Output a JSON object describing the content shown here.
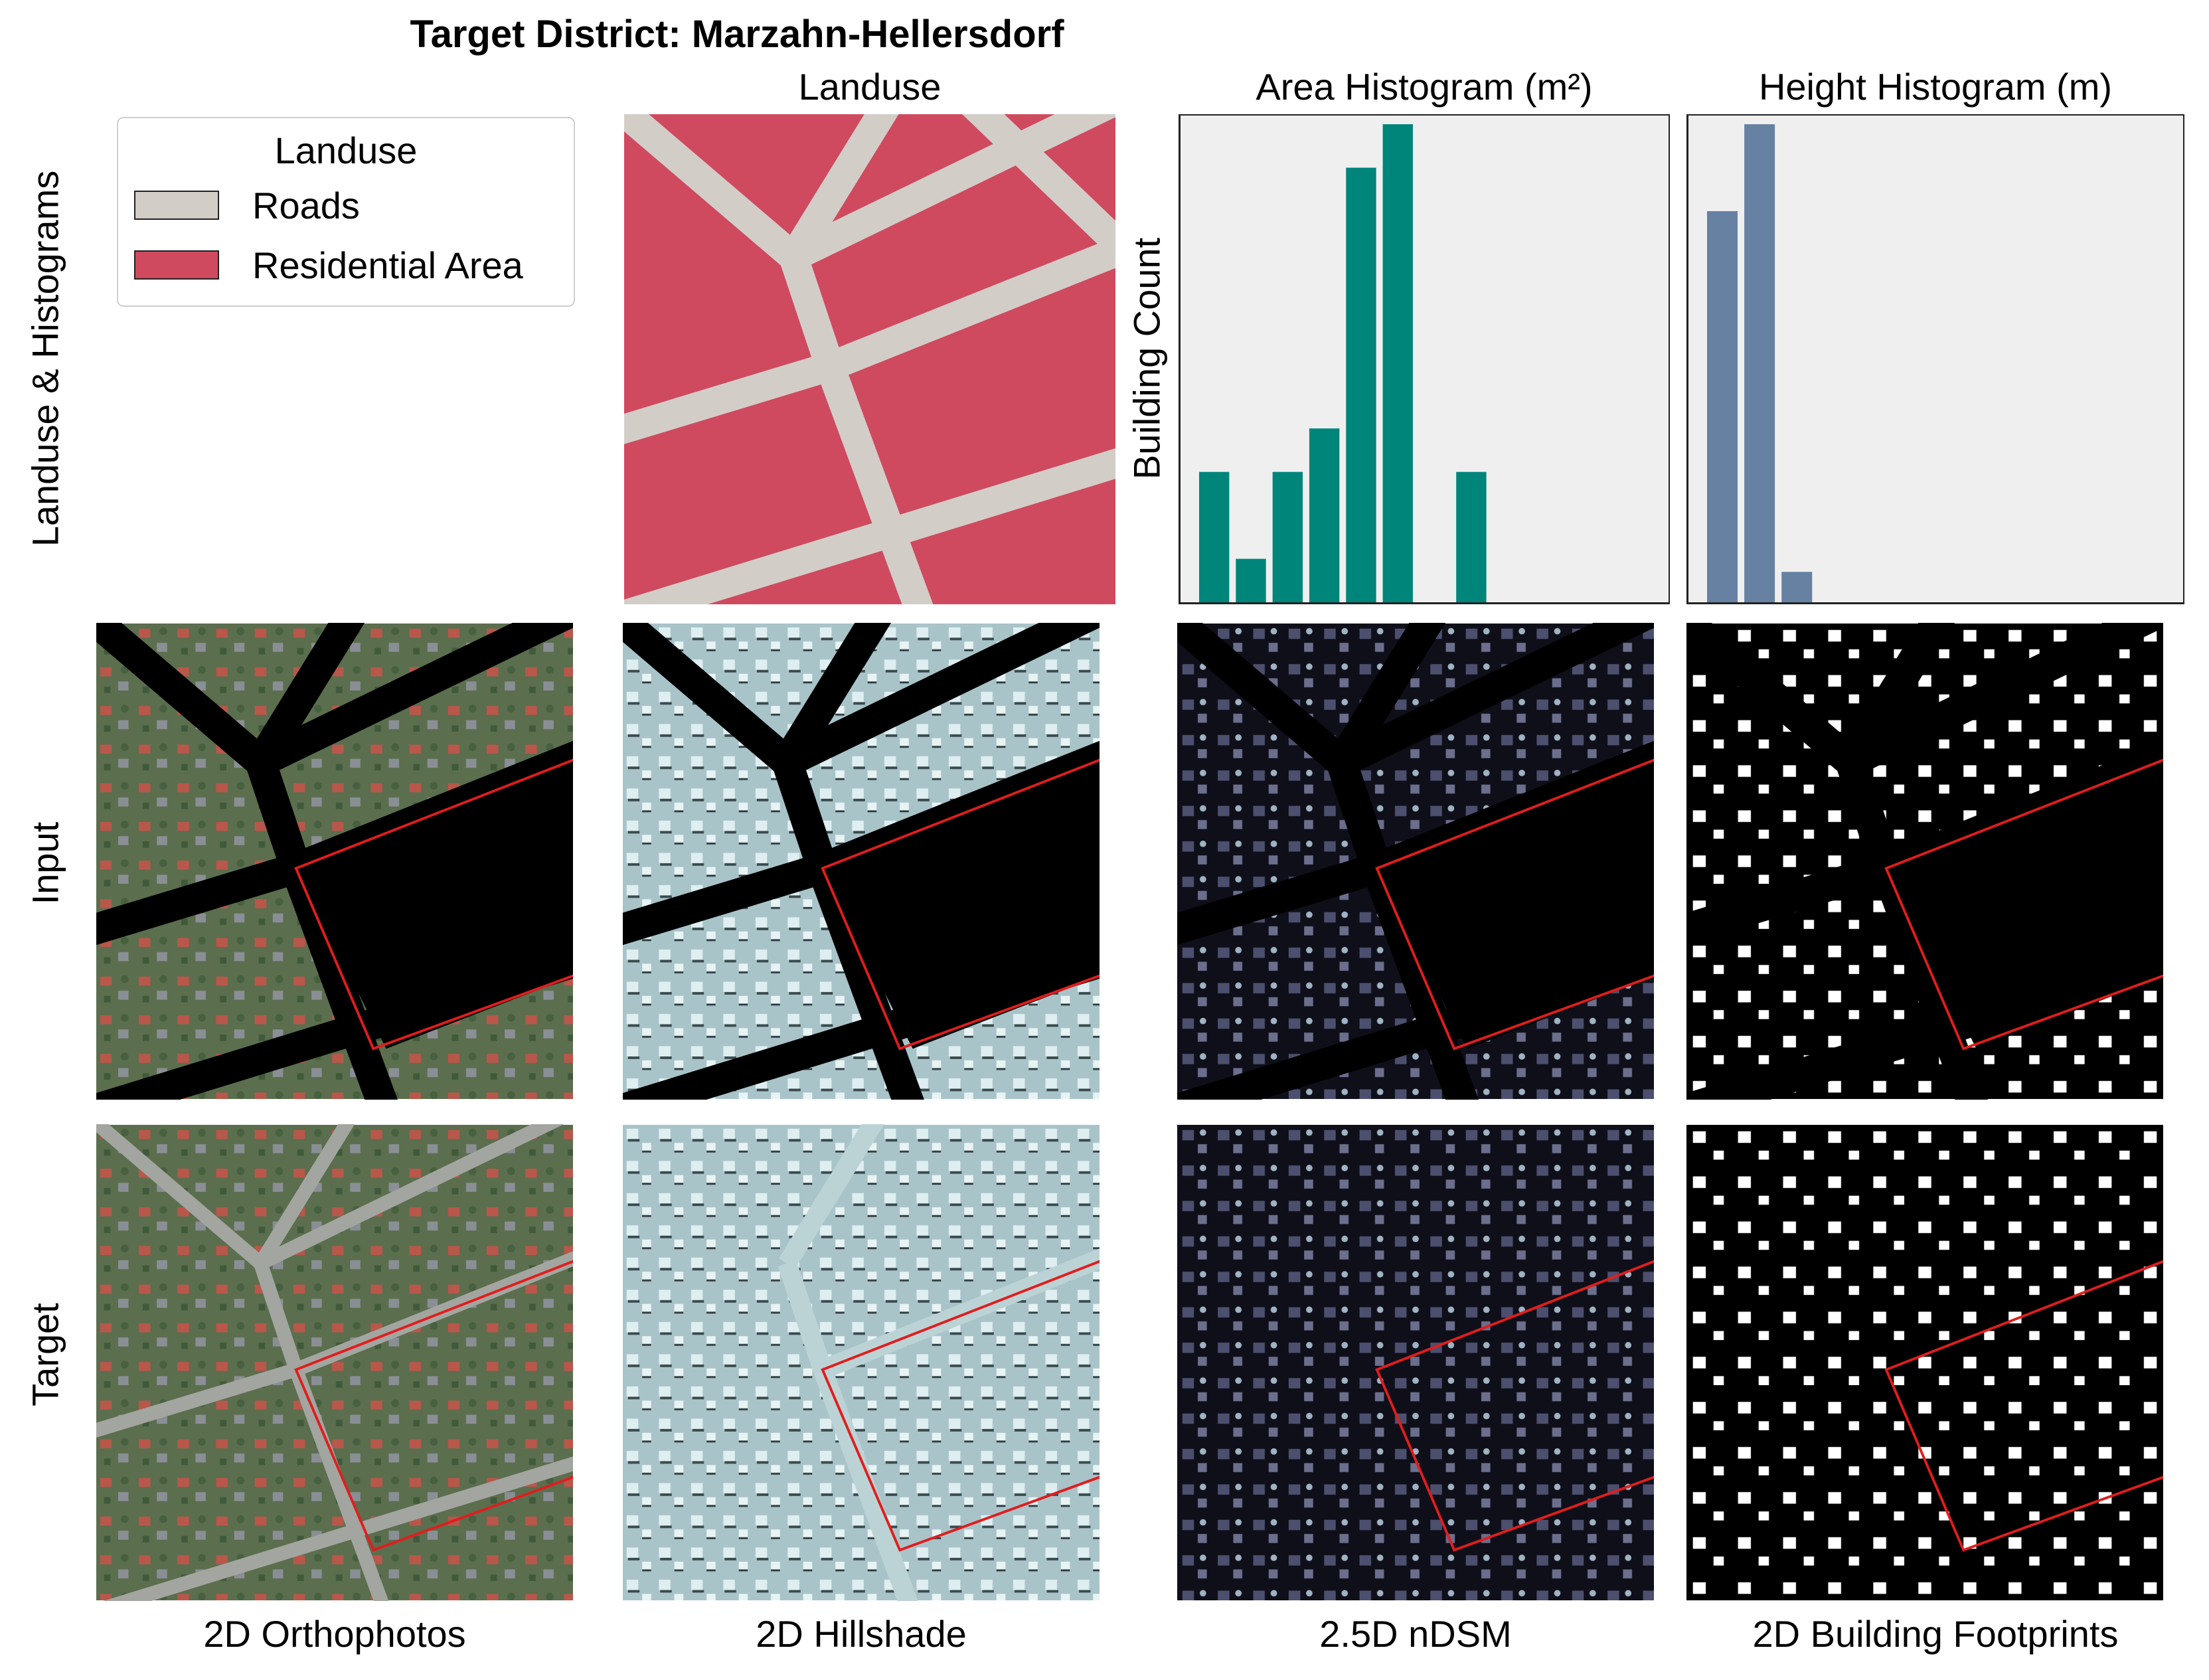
{
  "title": "Target District: Marzahn-Hellersdorf",
  "column_titles": {
    "landuse": "Landuse",
    "area_hist": "Area Histogram (m²)",
    "height_hist": "Height Histogram (m)"
  },
  "row_labels": {
    "row1": "Landuse & Histograms",
    "row2": "Input",
    "row3": "Target"
  },
  "column_labels": {
    "c1": "2D Orthophotos",
    "c2": "2D Hillshade",
    "c3": "2.5D nDSM",
    "c4": "2D Building Footprints"
  },
  "legend": {
    "title": "Landuse",
    "items": [
      {
        "label": "Roads",
        "color": "#d3cdc8"
      },
      {
        "label": "Residential Area",
        "color": "#cf4a5f"
      }
    ]
  },
  "colors": {
    "road": "#d3cdc8",
    "residential": "#cf4a5f",
    "area_bar": "#00857a",
    "height_bar": "#6781a3",
    "highlight": "#e11d1d"
  },
  "chart_data": [
    {
      "type": "bar",
      "title": "Area Histogram (m²)",
      "ylabel": "Building Count",
      "xlabel": "",
      "bins": 12,
      "values": [
        3,
        1,
        3,
        4,
        10,
        11,
        0,
        3,
        0,
        0,
        0,
        0
      ],
      "ylim": [
        0,
        11.2
      ],
      "grid": false
    },
    {
      "type": "bar",
      "title": "Height Histogram (m)",
      "ylabel": "",
      "xlabel": "",
      "bins": 12,
      "values": [
        9,
        11,
        0.7,
        0,
        0,
        0,
        0,
        0,
        0,
        0,
        0,
        0
      ],
      "ylim": [
        0,
        11.2
      ],
      "grid": false
    }
  ]
}
